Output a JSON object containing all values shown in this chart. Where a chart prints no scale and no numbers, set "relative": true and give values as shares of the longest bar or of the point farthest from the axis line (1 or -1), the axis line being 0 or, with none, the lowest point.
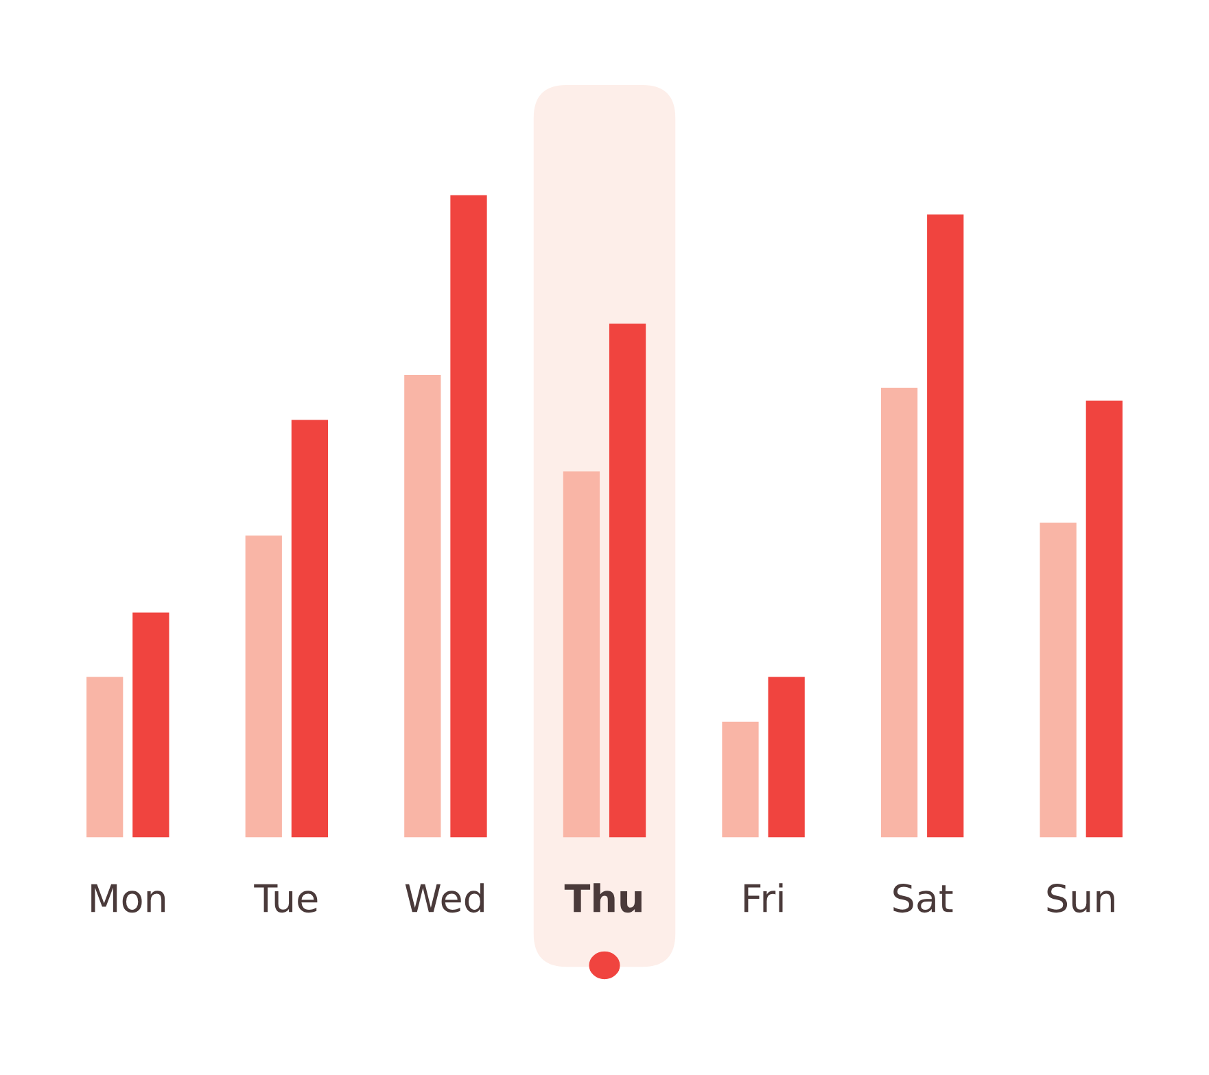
{
  "chart_data": {
    "type": "bar",
    "relative": true,
    "categories": [
      "Mon",
      "Tue",
      "Wed",
      "Thu",
      "Fri",
      "Sat",
      "Sun"
    ],
    "series": [
      {
        "color": "#f9b5a6",
        "values": [
          0.25,
          0.47,
          0.72,
          0.57,
          0.18,
          0.7,
          0.49
        ]
      },
      {
        "color": "#f0443f",
        "values": [
          0.35,
          0.65,
          1,
          0.8,
          0.25,
          0.97,
          0.68
        ]
      }
    ],
    "bands": [
      {
        "axis": "x",
        "from": "Thu",
        "to": "Thu",
        "color": "#fdeee9"
      }
    ],
    "grid": false,
    "legend": false
  }
}
